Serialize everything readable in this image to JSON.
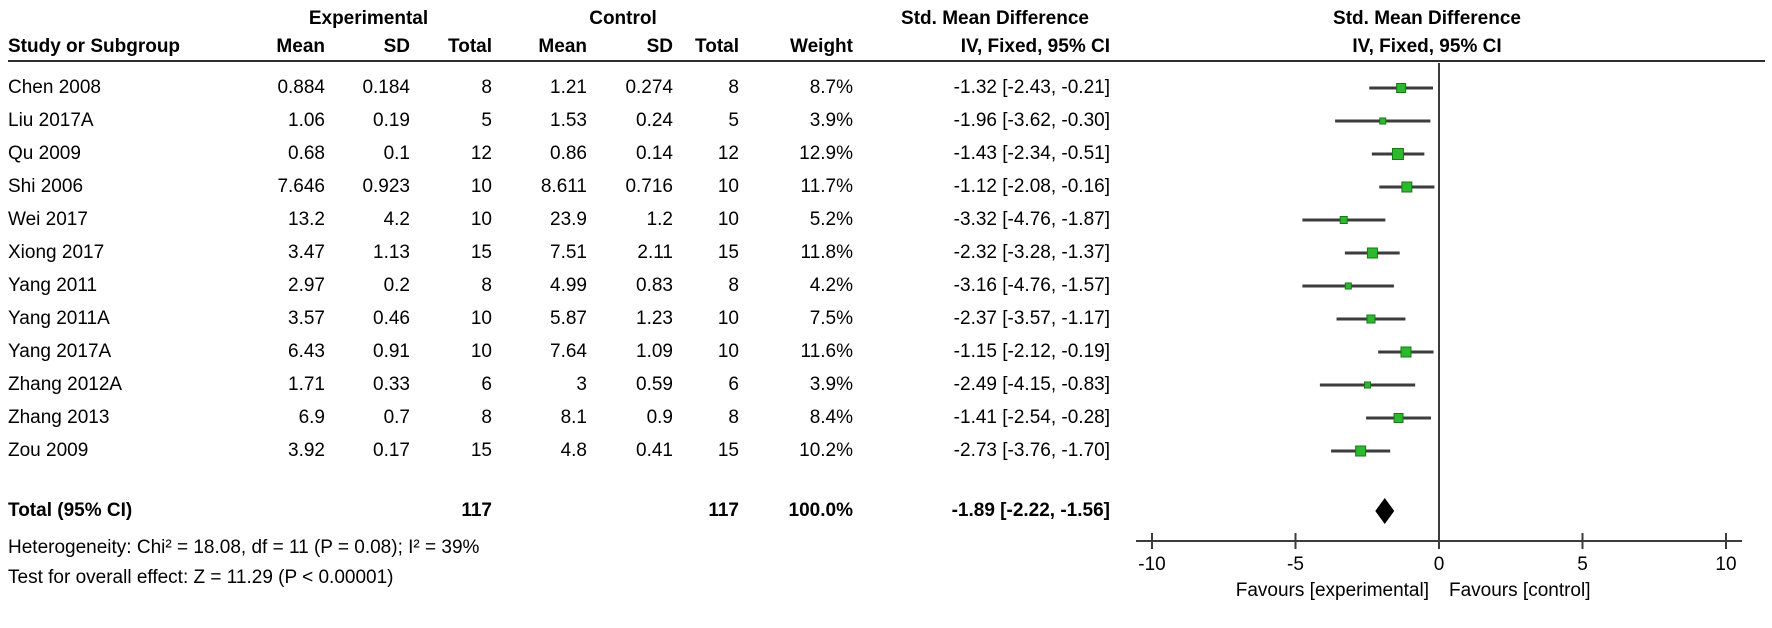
{
  "figure": {
    "headers": {
      "experimental": "Experimental",
      "control": "Control",
      "effect_table": "Std. Mean Difference",
      "effect_plot": "Std. Mean Difference",
      "study": "Study or Subgroup",
      "mean": "Mean",
      "sd": "SD",
      "total": "Total",
      "weight": "Weight",
      "ci": "IV, Fixed, 95% CI",
      "ci_plot": "IV, Fixed, 95% CI"
    }
  },
  "chart_data": {
    "type": "forest",
    "effect_measure": "Std. Mean Difference",
    "model": "IV, Fixed, 95% CI",
    "studies": [
      {
        "name": "Chen 2008",
        "exp_mean": "0.884",
        "exp_sd": "0.184",
        "exp_total": "8",
        "ctrl_mean": "1.21",
        "ctrl_sd": "0.274",
        "ctrl_total": "8",
        "weight": "8.7%",
        "weight_value": 8.7,
        "smd": -1.32,
        "ci_low": -2.43,
        "ci_high": -0.21,
        "ci_text": "-1.32 [-2.43, -0.21]"
      },
      {
        "name": "Liu 2017A",
        "exp_mean": "1.06",
        "exp_sd": "0.19",
        "exp_total": "5",
        "ctrl_mean": "1.53",
        "ctrl_sd": "0.24",
        "ctrl_total": "5",
        "weight": "3.9%",
        "weight_value": 3.9,
        "smd": -1.96,
        "ci_low": -3.62,
        "ci_high": -0.3,
        "ci_text": "-1.96 [-3.62, -0.30]"
      },
      {
        "name": "Qu 2009",
        "exp_mean": "0.68",
        "exp_sd": "0.1",
        "exp_total": "12",
        "ctrl_mean": "0.86",
        "ctrl_sd": "0.14",
        "ctrl_total": "12",
        "weight": "12.9%",
        "weight_value": 12.9,
        "smd": -1.43,
        "ci_low": -2.34,
        "ci_high": -0.51,
        "ci_text": "-1.43 [-2.34, -0.51]"
      },
      {
        "name": "Shi 2006",
        "exp_mean": "7.646",
        "exp_sd": "0.923",
        "exp_total": "10",
        "ctrl_mean": "8.611",
        "ctrl_sd": "0.716",
        "ctrl_total": "10",
        "weight": "11.7%",
        "weight_value": 11.7,
        "smd": -1.12,
        "ci_low": -2.08,
        "ci_high": -0.16,
        "ci_text": "-1.12 [-2.08, -0.16]"
      },
      {
        "name": "Wei 2017",
        "exp_mean": "13.2",
        "exp_sd": "4.2",
        "exp_total": "10",
        "ctrl_mean": "23.9",
        "ctrl_sd": "1.2",
        "ctrl_total": "10",
        "weight": "5.2%",
        "weight_value": 5.2,
        "smd": -3.32,
        "ci_low": -4.76,
        "ci_high": -1.87,
        "ci_text": "-3.32 [-4.76, -1.87]"
      },
      {
        "name": "Xiong 2017",
        "exp_mean": "3.47",
        "exp_sd": "1.13",
        "exp_total": "15",
        "ctrl_mean": "7.51",
        "ctrl_sd": "2.11",
        "ctrl_total": "15",
        "weight": "11.8%",
        "weight_value": 11.8,
        "smd": -2.32,
        "ci_low": -3.28,
        "ci_high": -1.37,
        "ci_text": "-2.32 [-3.28, -1.37]"
      },
      {
        "name": "Yang 2011",
        "exp_mean": "2.97",
        "exp_sd": "0.2",
        "exp_total": "8",
        "ctrl_mean": "4.99",
        "ctrl_sd": "0.83",
        "ctrl_total": "8",
        "weight": "4.2%",
        "weight_value": 4.2,
        "smd": -3.16,
        "ci_low": -4.76,
        "ci_high": -1.57,
        "ci_text": "-3.16 [-4.76, -1.57]"
      },
      {
        "name": "Yang 2011A",
        "exp_mean": "3.57",
        "exp_sd": "0.46",
        "exp_total": "10",
        "ctrl_mean": "5.87",
        "ctrl_sd": "1.23",
        "ctrl_total": "10",
        "weight": "7.5%",
        "weight_value": 7.5,
        "smd": -2.37,
        "ci_low": -3.57,
        "ci_high": -1.17,
        "ci_text": "-2.37 [-3.57, -1.17]"
      },
      {
        "name": "Yang 2017A",
        "exp_mean": "6.43",
        "exp_sd": "0.91",
        "exp_total": "10",
        "ctrl_mean": "7.64",
        "ctrl_sd": "1.09",
        "ctrl_total": "10",
        "weight": "11.6%",
        "weight_value": 11.6,
        "smd": -1.15,
        "ci_low": -2.12,
        "ci_high": -0.19,
        "ci_text": "-1.15 [-2.12, -0.19]"
      },
      {
        "name": "Zhang 2012A",
        "exp_mean": "1.71",
        "exp_sd": "0.33",
        "exp_total": "6",
        "ctrl_mean": "3",
        "ctrl_sd": "0.59",
        "ctrl_total": "6",
        "weight": "3.9%",
        "weight_value": 3.9,
        "smd": -2.49,
        "ci_low": -4.15,
        "ci_high": -0.83,
        "ci_text": "-2.49 [-4.15, -0.83]"
      },
      {
        "name": "Zhang 2013",
        "exp_mean": "6.9",
        "exp_sd": "0.7",
        "exp_total": "8",
        "ctrl_mean": "8.1",
        "ctrl_sd": "0.9",
        "ctrl_total": "8",
        "weight": "8.4%",
        "weight_value": 8.4,
        "smd": -1.41,
        "ci_low": -2.54,
        "ci_high": -0.28,
        "ci_text": "-1.41 [-2.54, -0.28]"
      },
      {
        "name": "Zou 2009",
        "exp_mean": "3.92",
        "exp_sd": "0.17",
        "exp_total": "15",
        "ctrl_mean": "4.8",
        "ctrl_sd": "0.41",
        "ctrl_total": "15",
        "weight": "10.2%",
        "weight_value": 10.2,
        "smd": -2.73,
        "ci_low": -3.76,
        "ci_high": -1.7,
        "ci_text": "-2.73 [-3.76, -1.70]"
      }
    ],
    "total": {
      "label": "Total (95% CI)",
      "exp_total": "117",
      "ctrl_total": "117",
      "weight": "100.0%",
      "smd": -1.89,
      "ci_low": -2.22,
      "ci_high": -1.56,
      "ci_text": "-1.89 [-2.22, -1.56]"
    },
    "axis": {
      "min": -10,
      "max": 10,
      "ticks": [
        -10,
        -5,
        0,
        5,
        10
      ],
      "tick_labels": [
        "-10",
        "-5",
        "0",
        "5",
        "10"
      ],
      "favours_left": "Favours [experimental]",
      "favours_right": "Favours [control]"
    },
    "heterogeneity": "Heterogeneity: Chi² = 18.08, df = 11 (P = 0.08); I² = 39%",
    "overall_effect_test": "Test for overall effect: Z = 11.29 (P < 0.00001)",
    "colors": {
      "marker_fill": "#2db92d",
      "marker_stroke": "#157a15",
      "diamond": "#000000",
      "line_color": "#3c3c3c"
    }
  }
}
